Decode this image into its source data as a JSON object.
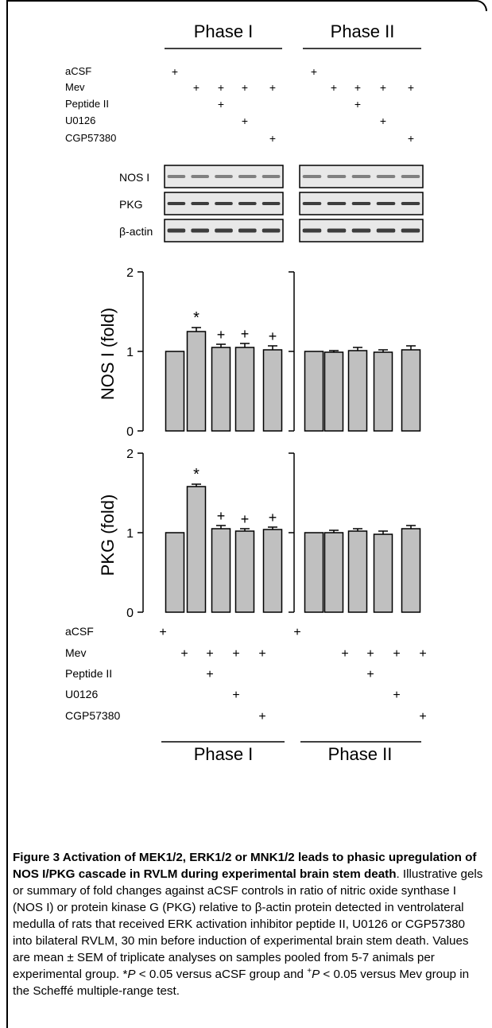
{
  "chart_data": {
    "type": "bar",
    "phases": [
      "Phase I",
      "Phase II"
    ],
    "treatment_rows": [
      {
        "label": "aCSF",
        "marks": [
          true,
          false,
          false,
          false,
          false
        ]
      },
      {
        "label": "Mev",
        "marks": [
          false,
          true,
          true,
          true,
          true
        ]
      },
      {
        "label": "Peptide II",
        "marks": [
          false,
          false,
          true,
          false,
          false
        ]
      },
      {
        "label": "U0126",
        "marks": [
          false,
          false,
          false,
          true,
          false
        ]
      },
      {
        "label": "CGP57380",
        "marks": [
          false,
          false,
          false,
          false,
          true
        ]
      }
    ],
    "plus_symbol": "+",
    "gel_rows": [
      "NOS I",
      "PKG",
      "β-actin"
    ],
    "panels": [
      {
        "ylabel": "NOS I (fold)",
        "ylim": [
          0,
          2
        ],
        "yticks": [
          "0",
          "1",
          "2"
        ],
        "phase1": {
          "values": [
            1.0,
            1.25,
            1.05,
            1.05,
            1.02
          ],
          "errors": [
            0.0,
            0.05,
            0.04,
            0.05,
            0.05
          ],
          "annotations": [
            "",
            "*",
            "+",
            "+",
            "+"
          ]
        },
        "phase2": {
          "values": [
            1.0,
            0.99,
            1.01,
            0.99,
            1.02
          ],
          "errors": [
            0.0,
            0.02,
            0.04,
            0.03,
            0.05
          ],
          "annotations": [
            "",
            "",
            "",
            "",
            ""
          ]
        }
      },
      {
        "ylabel": "PKG (fold)",
        "ylim": [
          0,
          2
        ],
        "yticks": [
          "0",
          "1",
          "2"
        ],
        "phase1": {
          "values": [
            1.0,
            1.58,
            1.05,
            1.02,
            1.04
          ],
          "errors": [
            0.0,
            0.03,
            0.04,
            0.03,
            0.03
          ],
          "annotations": [
            "",
            "*",
            "+",
            "+",
            "+"
          ]
        },
        "phase2": {
          "values": [
            1.0,
            1.0,
            1.02,
            0.98,
            1.05
          ],
          "errors": [
            0.0,
            0.03,
            0.03,
            0.04,
            0.04
          ],
          "annotations": [
            "",
            "",
            "",
            "",
            ""
          ]
        }
      }
    ],
    "colors": {
      "bar": "#c0c0c0",
      "gel_bg": "#e8e8e8",
      "band": "#2a2a2a"
    }
  },
  "caption": {
    "title": "Figure 3 Activation of MEK1/2, ERK1/2 or MNK1/2 leads to phasic upregulation of NOS I/PKG cascade in RVLM during experimental brain stem death",
    "body1": ". Illustrative gels or summary of fold changes against aCSF controls in ratio of nitric oxide synthase I (NOS I) or protein kinase G (PKG) relative to β-actin protein detected in ventrolateral medulla of rats that received ERK activation inhibitor peptide II, U0126 or CGP57380 into bilateral RVLM, 30 min before induction of experimental brain stem death. Values are mean ± SEM of triplicate analyses on samples pooled from 5-7 animals per experimental group. *",
    "p1": "P",
    "body2": " < 0.05 versus aCSF group and ",
    "sup": "+",
    "p2": "P",
    "body3": " < 0.05 versus Mev group in the Scheffé multiple-range test."
  }
}
